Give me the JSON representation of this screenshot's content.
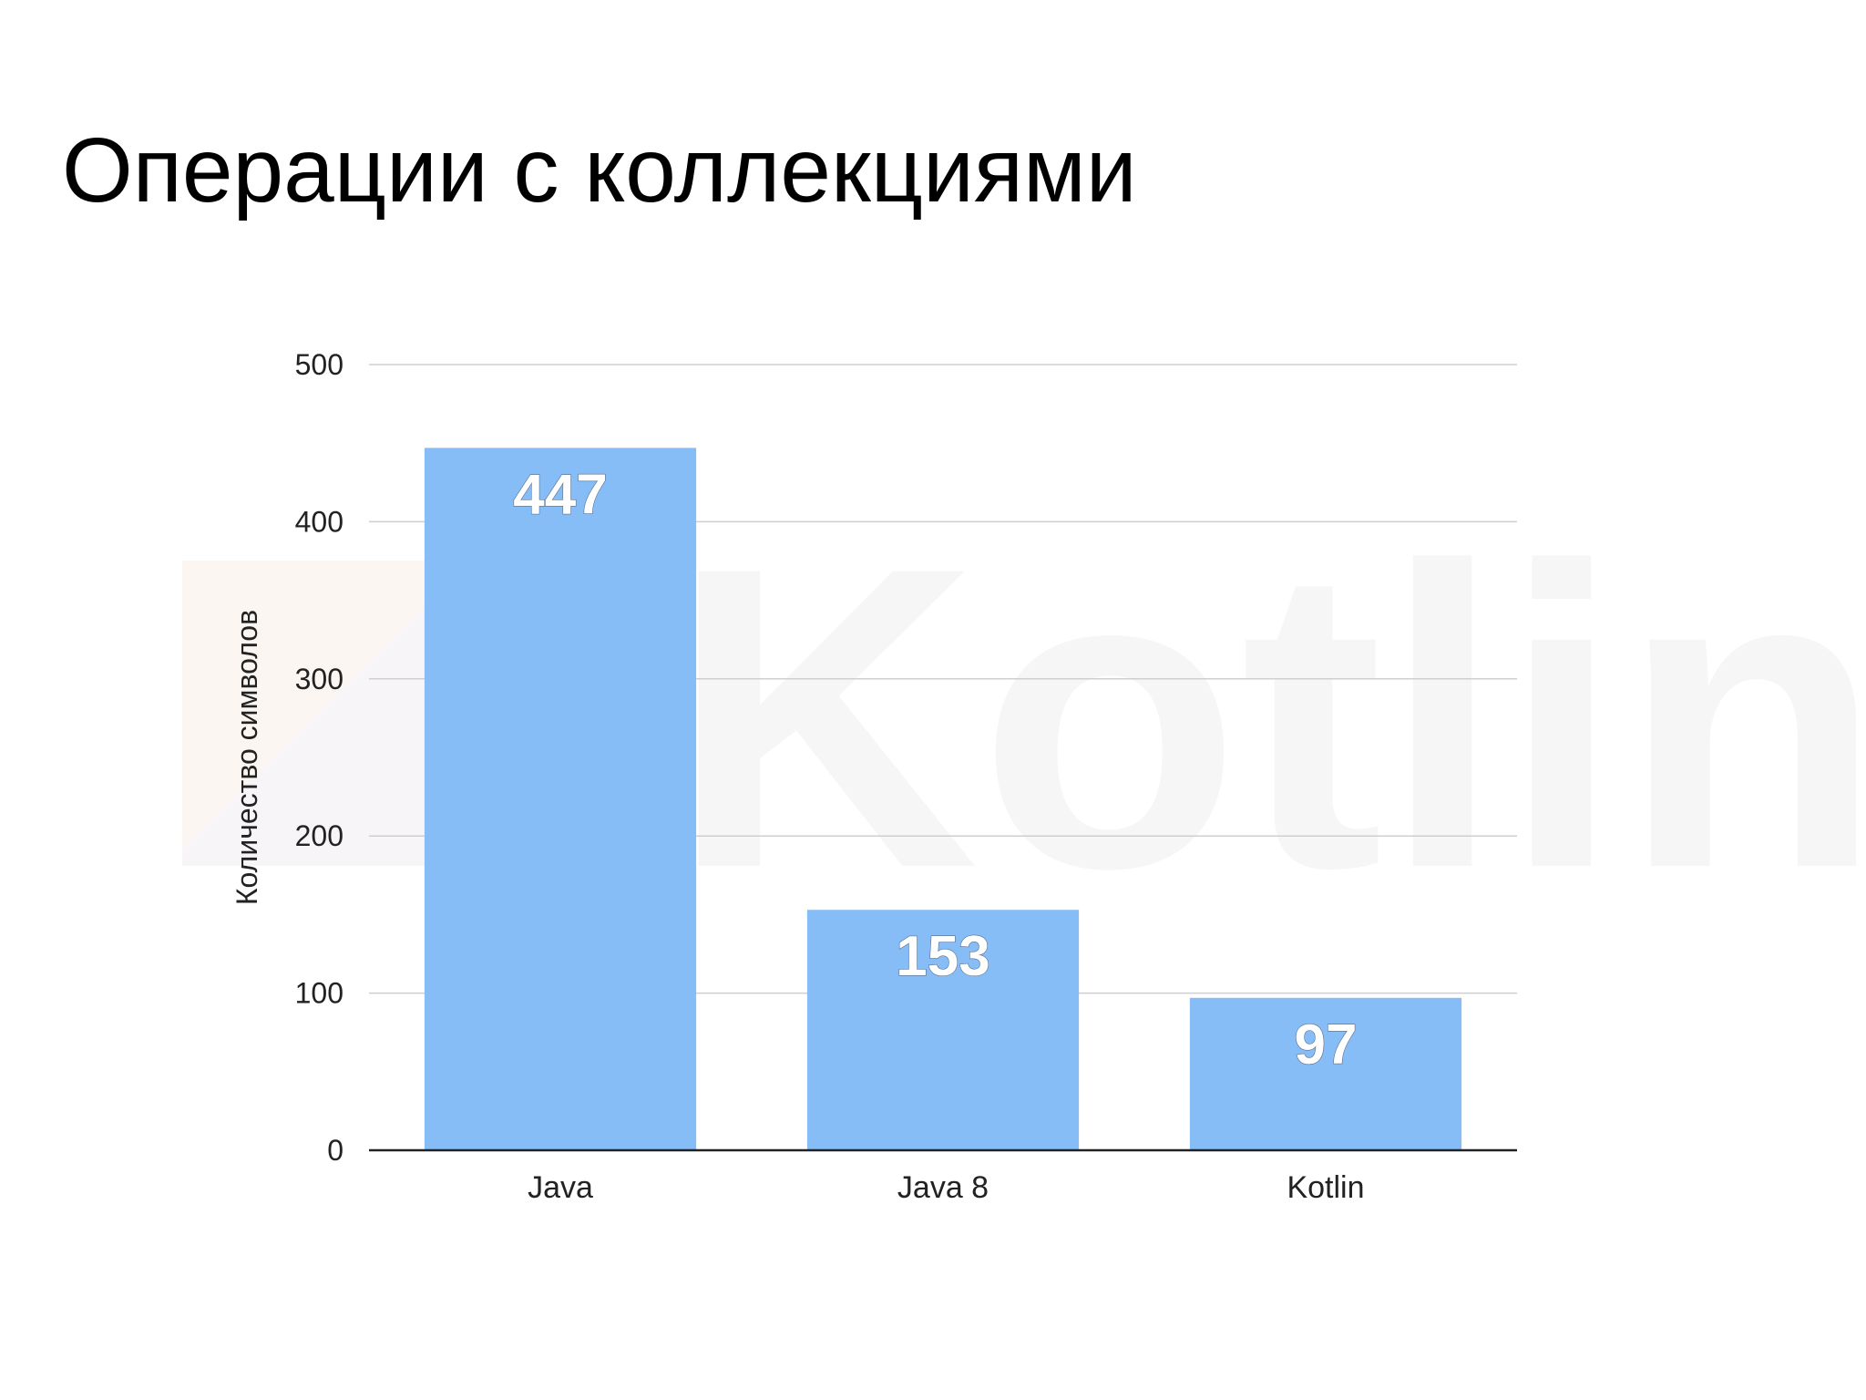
{
  "slide": {
    "title": "Операции с коллекциями"
  },
  "watermark": {
    "text": "Kotlin",
    "icon": "kotlin-logo-icon",
    "color": "#f6f6f6"
  },
  "chart_data": {
    "type": "bar",
    "categories": [
      "Java",
      "Java 8",
      "Kotlin"
    ],
    "values": [
      447,
      153,
      97
    ],
    "title": "",
    "xlabel": "",
    "ylabel": "Количество символов",
    "ylim": [
      0,
      500
    ],
    "yticks": [
      0,
      100,
      200,
      300,
      400,
      500
    ],
    "grid": true,
    "legend": "none",
    "data_labels": true,
    "bar_color": "#86bdf6"
  }
}
